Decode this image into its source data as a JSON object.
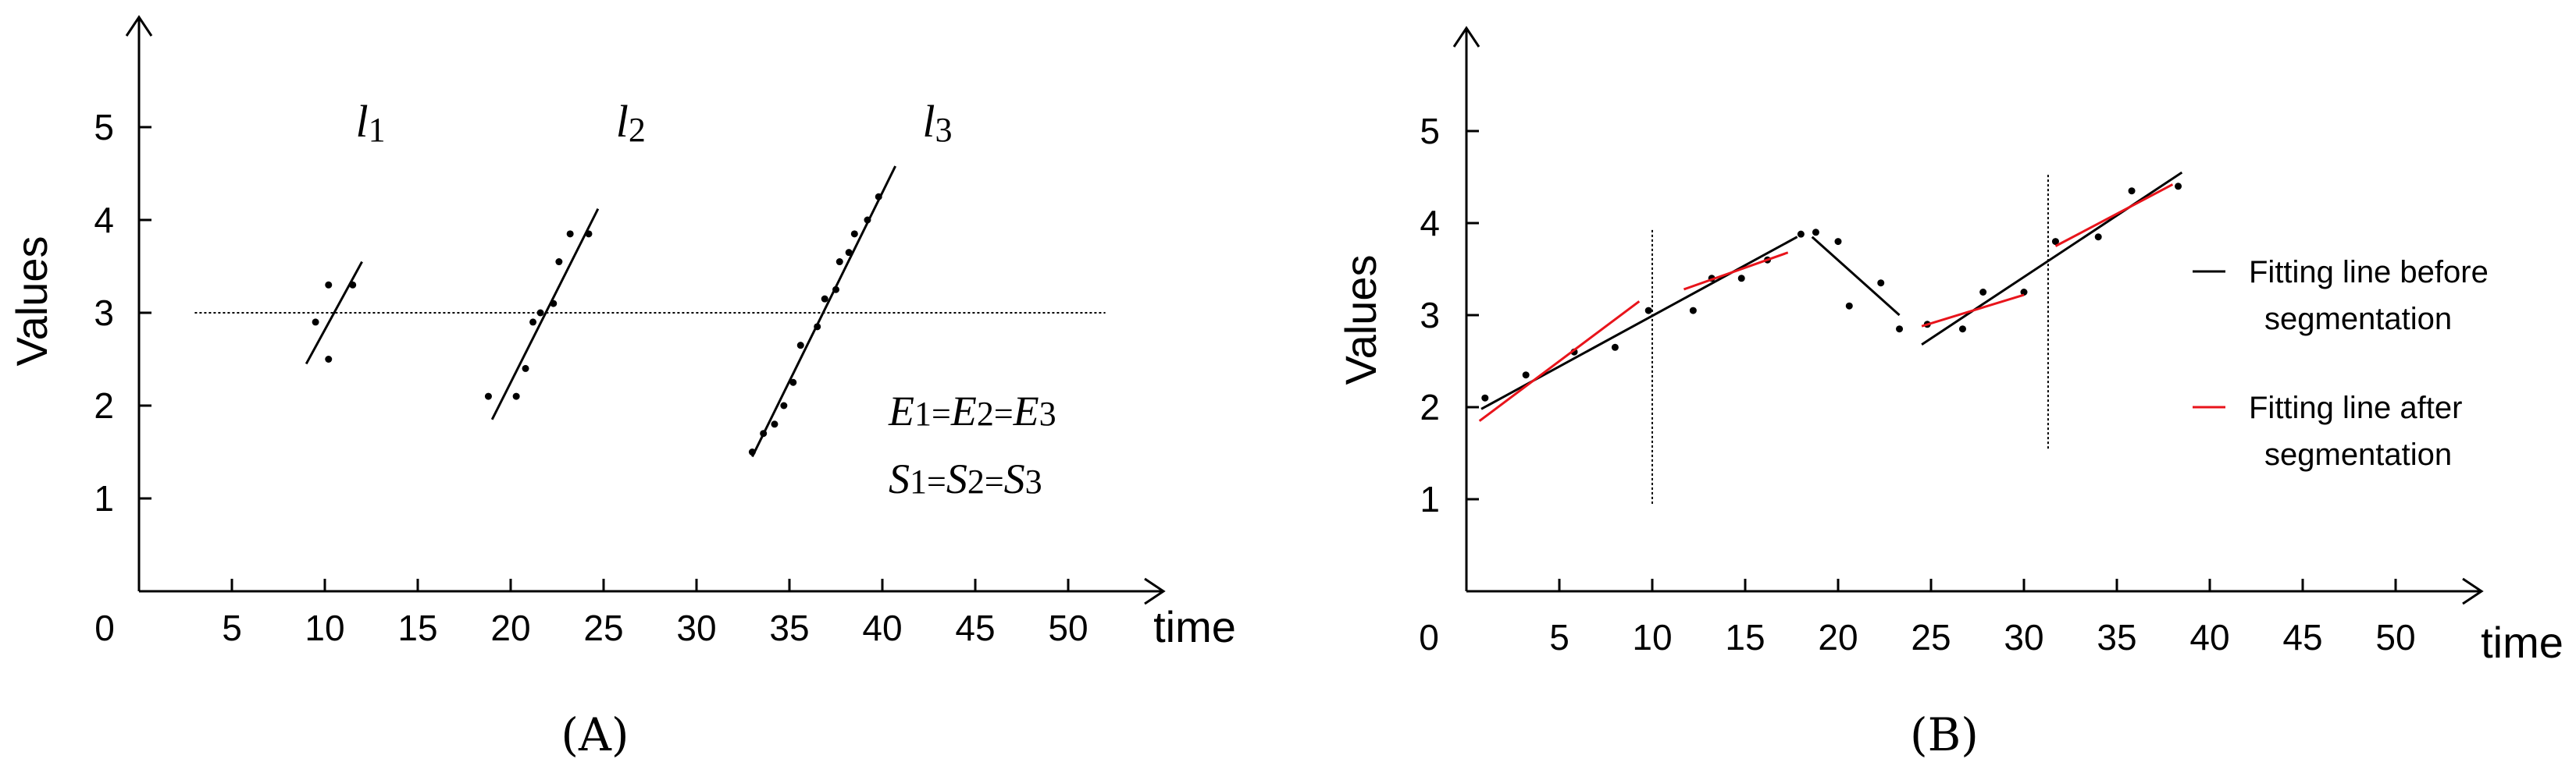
{
  "chart_data": [
    {
      "type": "scatter",
      "caption": "(A)",
      "xlabel": "time",
      "ylabel": "Values",
      "xlim": [
        0,
        52
      ],
      "ylim": [
        0,
        5.5
      ],
      "x_ticks": [
        0,
        5,
        10,
        15,
        20,
        25,
        30,
        35,
        40,
        45,
        50
      ],
      "y_ticks": [
        1,
        2,
        3,
        4,
        5
      ],
      "reference_line": {
        "y": 3,
        "x": [
          3,
          52
        ],
        "style": "dotted"
      },
      "segments": [
        {
          "name_letter": "l",
          "name_sub": "1",
          "label_pos": {
            "x": 12.5,
            "y": 5
          },
          "points": [
            [
              9.5,
              2.9
            ],
            [
              10.2,
              2.5
            ],
            [
              10.2,
              3.3
            ],
            [
              11.5,
              3.3
            ]
          ],
          "line": [
            [
              9,
              2.45
            ],
            [
              12,
              3.55
            ]
          ]
        },
        {
          "name_letter": "l",
          "name_sub": "2",
          "label_pos": {
            "x": 26.5,
            "y": 5
          },
          "points": [
            [
              18.8,
              2.1
            ],
            [
              20.3,
              2.1
            ],
            [
              20.8,
              2.4
            ],
            [
              21.2,
              2.9
            ],
            [
              21.6,
              3.0
            ],
            [
              22.3,
              3.1
            ],
            [
              22.6,
              3.55
            ],
            [
              23.2,
              3.85
            ],
            [
              24.2,
              3.85
            ]
          ],
          "line": [
            [
              19,
              1.85
            ],
            [
              24.7,
              4.12
            ]
          ]
        },
        {
          "name_letter": "l",
          "name_sub": "3",
          "label_pos": {
            "x": 43,
            "y": 5
          },
          "points": [
            [
              33,
              1.5
            ],
            [
              33.6,
              1.7
            ],
            [
              34.2,
              1.8
            ],
            [
              34.7,
              2.0
            ],
            [
              35.2,
              2.25
            ],
            [
              35.6,
              2.65
            ],
            [
              36.5,
              2.85
            ],
            [
              36.9,
              3.15
            ],
            [
              37.5,
              3.25
            ],
            [
              37.7,
              3.55
            ],
            [
              38.2,
              3.65
            ],
            [
              38.5,
              3.85
            ],
            [
              39.2,
              4.0
            ],
            [
              39.8,
              4.25
            ]
          ],
          "line": [
            [
              33,
              1.45
            ],
            [
              40.7,
              4.58
            ]
          ]
        }
      ],
      "annotations": [
        {
          "line_id": "E",
          "parts": [
            "E",
            "1",
            "=",
            "E",
            "2",
            "=",
            "E",
            "3"
          ]
        },
        {
          "line_id": "S",
          "parts": [
            "S",
            "1",
            "=",
            "S",
            "2",
            "=",
            "S",
            "3"
          ]
        }
      ]
    },
    {
      "type": "scatter",
      "caption": "(B)",
      "xlabel": "time",
      "ylabel": "Values",
      "xlim": [
        0,
        54
      ],
      "ylim": [
        0,
        5.5
      ],
      "x_ticks": [
        0,
        5,
        10,
        15,
        20,
        25,
        30,
        35,
        40,
        45,
        50
      ],
      "y_ticks": [
        1,
        2,
        3,
        4,
        5
      ],
      "vertical_lines": [
        {
          "x": 10,
          "y": [
            0.95,
            3.95
          ],
          "style": "dotted"
        },
        {
          "x": 31.3,
          "y": [
            1.55,
            4.55
          ],
          "style": "dotted"
        }
      ],
      "points": [
        [
          1,
          2.1
        ],
        [
          3.2,
          2.35
        ],
        [
          5.8,
          2.6
        ],
        [
          8,
          2.65
        ],
        [
          9.8,
          3.05
        ],
        [
          12.2,
          3.05
        ],
        [
          13.2,
          3.4
        ],
        [
          14.8,
          3.4
        ],
        [
          16.2,
          3.6
        ],
        [
          18,
          3.88
        ],
        [
          18.8,
          3.9
        ],
        [
          20,
          3.8
        ],
        [
          20.6,
          3.1
        ],
        [
          22.3,
          3.35
        ],
        [
          23.3,
          2.85
        ],
        [
          24.8,
          2.9
        ],
        [
          26.7,
          2.85
        ],
        [
          27.8,
          3.25
        ],
        [
          30,
          3.25
        ],
        [
          31.7,
          3.8
        ],
        [
          34,
          3.85
        ],
        [
          35.8,
          4.35
        ],
        [
          38.3,
          4.4
        ]
      ],
      "series": [
        {
          "name": "Fitting line before segmentation",
          "legend_lines": [
            "Fitting line before",
            "segmentation"
          ],
          "color": "#000000",
          "lines": [
            [
              [
                0.8,
                1.98
              ],
              [
                17.8,
                3.85
              ]
            ],
            [
              [
                18.6,
                3.85
              ],
              [
                23.3,
                3.0
              ]
            ],
            [
              [
                24.5,
                2.68
              ],
              [
                38.5,
                4.55
              ]
            ]
          ]
        },
        {
          "name": "Fitting line after segmentation",
          "legend_lines": [
            "Fitting line after",
            "segmentation"
          ],
          "color": "#e8141b",
          "lines": [
            [
              [
                0.7,
                1.85
              ],
              [
                9.3,
                3.15
              ]
            ],
            [
              [
                11.7,
                3.28
              ],
              [
                17.3,
                3.68
              ]
            ],
            [
              [
                24.5,
                2.88
              ],
              [
                30,
                3.22
              ]
            ],
            [
              [
                31.7,
                3.75
              ],
              [
                38,
                4.42
              ]
            ]
          ]
        }
      ]
    }
  ]
}
